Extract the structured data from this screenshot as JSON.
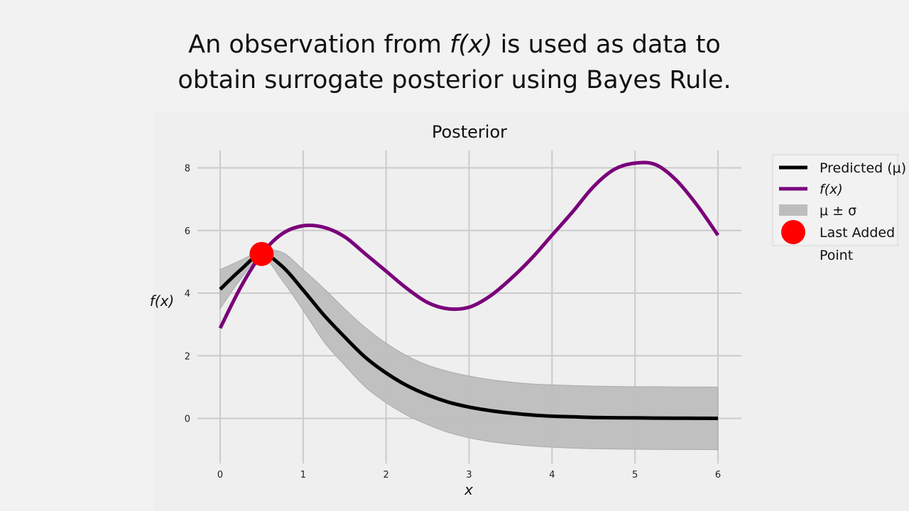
{
  "slide": {
    "title_line1_pre": "An observation from ",
    "title_line1_em": "f(x)",
    "title_line1_post": " is used as data to",
    "title_line2": "obtain surrogate posterior using Bayes Rule."
  },
  "chart_data": {
    "type": "line",
    "title": "Posterior",
    "xlabel": "x",
    "ylabel": "f(x)",
    "xlim": [
      -0.15,
      6.15
    ],
    "ylim": [
      -1.45,
      8.6
    ],
    "xticks": [
      0,
      1,
      2,
      3,
      4,
      5,
      6
    ],
    "yticks": [
      0,
      2,
      4,
      6,
      8
    ],
    "grid": true,
    "legend_position": "right",
    "series": [
      {
        "name": "Predicted (μ)",
        "color": "#000000",
        "x": [
          0,
          0.25,
          0.5,
          0.75,
          1.0,
          1.25,
          1.5,
          1.75,
          2.0,
          2.25,
          2.5,
          2.75,
          3.0,
          3.25,
          3.5,
          3.75,
          4.0,
          4.25,
          4.5,
          4.75,
          5.0,
          5.25,
          5.5,
          5.75,
          6.0
        ],
        "y": [
          4.12,
          4.75,
          5.25,
          4.85,
          4.1,
          3.3,
          2.6,
          1.95,
          1.45,
          1.05,
          0.75,
          0.52,
          0.36,
          0.25,
          0.17,
          0.11,
          0.07,
          0.05,
          0.03,
          0.02,
          0.015,
          0.01,
          0.006,
          0.003,
          0.0
        ]
      },
      {
        "name": "f(x)",
        "color": "#7a007a",
        "x": [
          0,
          0.25,
          0.5,
          0.75,
          1.0,
          1.25,
          1.5,
          1.75,
          2.0,
          2.25,
          2.5,
          2.75,
          3.0,
          3.25,
          3.5,
          3.75,
          4.0,
          4.25,
          4.5,
          4.75,
          5.0,
          5.25,
          5.5,
          5.75,
          6.0
        ],
        "y": [
          2.88,
          4.2,
          5.25,
          5.9,
          6.15,
          6.1,
          5.8,
          5.25,
          4.7,
          4.15,
          3.7,
          3.5,
          3.55,
          3.9,
          4.45,
          5.1,
          5.85,
          6.6,
          7.4,
          7.95,
          8.15,
          8.1,
          7.6,
          6.8,
          5.85
        ]
      }
    ],
    "band": {
      "name": "μ ± σ",
      "color": "#bdbdbd",
      "x": [
        0,
        0.25,
        0.5,
        0.75,
        1.0,
        1.25,
        1.5,
        1.75,
        2.0,
        2.25,
        2.5,
        2.75,
        3.0,
        3.25,
        3.5,
        3.75,
        4.0,
        4.25,
        4.5,
        4.75,
        5.0,
        5.25,
        5.5,
        5.75,
        6.0
      ],
      "upper": [
        4.75,
        5.05,
        5.35,
        5.3,
        4.75,
        4.15,
        3.5,
        2.9,
        2.4,
        2.0,
        1.7,
        1.5,
        1.35,
        1.24,
        1.16,
        1.1,
        1.07,
        1.05,
        1.03,
        1.02,
        1.01,
        1.01,
        1.005,
        1.003,
        1.0
      ],
      "lower": [
        3.5,
        4.45,
        5.15,
        4.4,
        3.45,
        2.45,
        1.7,
        1.0,
        0.5,
        0.1,
        -0.2,
        -0.45,
        -0.62,
        -0.74,
        -0.82,
        -0.88,
        -0.92,
        -0.95,
        -0.97,
        -0.98,
        -0.985,
        -0.99,
        -0.994,
        -0.997,
        -1.0
      ]
    },
    "points": [
      {
        "name": "Last Added Point",
        "x": 0.5,
        "y": 5.25,
        "color": "#ff0000"
      }
    ],
    "legend": [
      {
        "label": "Predicted (μ)",
        "kind": "line",
        "color": "#000000"
      },
      {
        "label": "f(x)",
        "kind": "line",
        "color": "#7a007a"
      },
      {
        "label": "μ ± σ",
        "kind": "band",
        "color": "#bdbdbd"
      },
      {
        "label": "Last Added Point",
        "kind": "marker",
        "color": "#ff0000"
      }
    ]
  }
}
